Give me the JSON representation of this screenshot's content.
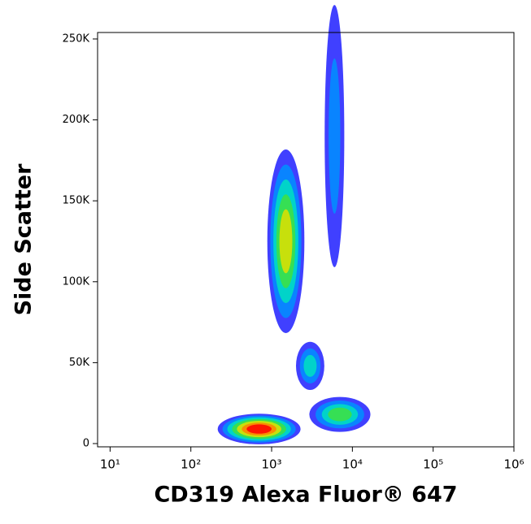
{
  "chart_data": {
    "type": "density",
    "x_label": "CD319 Alexa Fluor® 647",
    "y_label": "Side Scatter",
    "x_scale": "log",
    "xlim": [
      7,
      1000000
    ],
    "ylim": [
      -2000,
      254000
    ],
    "xticks": [
      {
        "value": 10,
        "label": "10¹"
      },
      {
        "value": 100,
        "label": "10²"
      },
      {
        "value": 1000,
        "label": "10³"
      },
      {
        "value": 10000,
        "label": "10⁴"
      },
      {
        "value": 100000,
        "label": "10⁵"
      },
      {
        "value": 1000000,
        "label": "10⁶"
      }
    ],
    "yticks": [
      0,
      {
        "value": 50000,
        "label": "50K"
      },
      {
        "value": 100000,
        "label": "100K"
      },
      {
        "value": 150000,
        "label": "150K"
      },
      {
        "value": 200000,
        "label": "200K"
      },
      {
        "value": 250000,
        "label": "250K"
      }
    ],
    "colormap": [
      "#0000ff",
      "#0090ff",
      "#00e0c0",
      "#40e040",
      "#e0e000",
      "#ff8000",
      "#ff0000"
    ],
    "populations": [
      {
        "x": 6000,
        "y": 190000,
        "x_spread": 0.09,
        "y_spread": 60000,
        "peak_color": "#0090ff"
      },
      {
        "x": 1500,
        "y": 125000,
        "x_spread": 0.17,
        "y_spread": 42000,
        "peak_color": "#e0e000"
      },
      {
        "x": 3000,
        "y": 48000,
        "x_spread": 0.13,
        "y_spread": 11000,
        "peak_color": "#00e0c0"
      },
      {
        "x": 7000,
        "y": 18000,
        "x_spread": 0.28,
        "y_spread": 8000,
        "peak_color": "#40e040"
      },
      {
        "x": 700,
        "y": 9000,
        "x_spread": 0.38,
        "y_spread": 7000,
        "peak_color": "#ff0000"
      }
    ]
  }
}
